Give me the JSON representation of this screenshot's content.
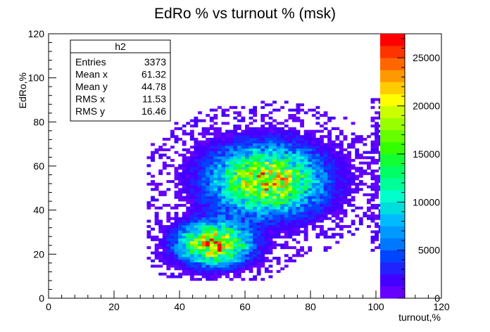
{
  "chart_data": {
    "type": "heatmap",
    "title": "EdRo % vs turnout % (msk)",
    "xlabel": "turnout,%",
    "ylabel": "EdRo,%",
    "xlim": [
      0,
      120
    ],
    "ylim": [
      0,
      120
    ],
    "x_ticks": [
      "0",
      "20",
      "40",
      "60",
      "80",
      "100",
      "120"
    ],
    "y_ticks": [
      "0",
      "20",
      "40",
      "60",
      "80",
      "100",
      "120"
    ],
    "grid": false,
    "legend": "none",
    "colorbar": {
      "range": [
        0,
        27500
      ],
      "ticks": [
        "0",
        "5000",
        "10000",
        "15000",
        "20000",
        "25000"
      ],
      "colors": [
        "#6600ff",
        "#4400ff",
        "#2222ff",
        "#0044ff",
        "#0077ff",
        "#0099ff",
        "#00bbff",
        "#00dddd",
        "#00ffcc",
        "#00ff99",
        "#00ff66",
        "#11ff33",
        "#33ff00",
        "#66ff00",
        "#99ff00",
        "#ccff00",
        "#ffff00",
        "#ffcc00",
        "#ff9900",
        "#ff6600",
        "#ff3300",
        "#ff0000"
      ]
    },
    "clusters": [
      {
        "x": 50,
        "y": 24,
        "peak": 24000
      },
      {
        "x": 66,
        "y": 53,
        "peak": 22000
      }
    ],
    "stats_box": {
      "name": "h2",
      "rows": [
        {
          "label": "Entries",
          "value": "3373"
        },
        {
          "label": "Mean x",
          "value": "61.32"
        },
        {
          "label": "Mean y",
          "value": "44.78"
        },
        {
          "label": "RMS x",
          "value": "11.53"
        },
        {
          "label": "RMS y",
          "value": "16.46"
        }
      ]
    }
  }
}
